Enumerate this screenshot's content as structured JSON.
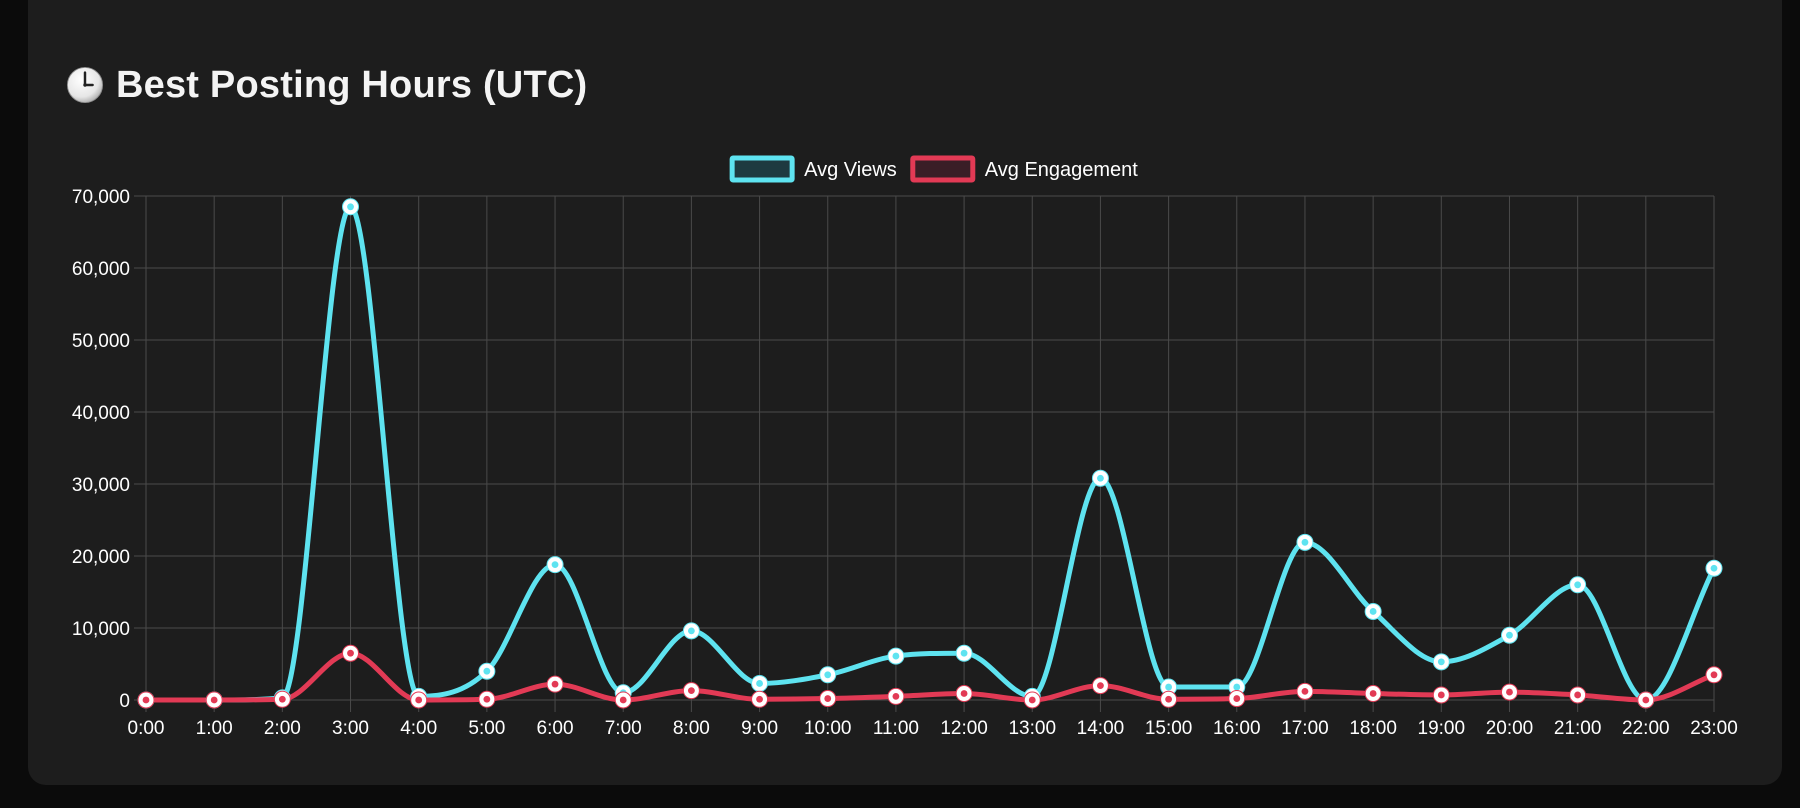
{
  "header": {
    "title": "Best Posting Hours (UTC)",
    "icon": "clock-icon"
  },
  "colors": {
    "background": "#0b0b0b",
    "panel": "#1d1d1d",
    "grid": "#4a4a4a",
    "views": "#5ee3f0",
    "engagement": "#e23a55",
    "text": "#ffffff"
  },
  "chart_data": {
    "type": "line",
    "title": "",
    "xlabel": "",
    "ylabel": "",
    "x": [
      "0:00",
      "1:00",
      "2:00",
      "3:00",
      "4:00",
      "5:00",
      "6:00",
      "7:00",
      "8:00",
      "9:00",
      "10:00",
      "11:00",
      "12:00",
      "13:00",
      "14:00",
      "15:00",
      "16:00",
      "17:00",
      "18:00",
      "19:00",
      "20:00",
      "21:00",
      "22:00",
      "23:00"
    ],
    "yticks": [
      "0",
      "10,000",
      "20,000",
      "30,000",
      "40,000",
      "50,000",
      "60,000",
      "70,000"
    ],
    "ylim": [
      0,
      70000
    ],
    "grid": true,
    "legend_position": "top-center",
    "smooth": true,
    "series": [
      {
        "name": "Avg Views",
        "color": "#5ee3f0",
        "values": [
          0,
          0,
          300,
          68500,
          500,
          4000,
          18800,
          1000,
          9600,
          2300,
          3500,
          6100,
          6500,
          500,
          30800,
          1800,
          1800,
          21900,
          12300,
          5300,
          9000,
          16000,
          0,
          18300
        ]
      },
      {
        "name": "Avg Engagement",
        "color": "#e23a55",
        "values": [
          0,
          0,
          100,
          6500,
          0,
          100,
          2200,
          0,
          1300,
          100,
          200,
          500,
          900,
          0,
          2000,
          100,
          200,
          1200,
          900,
          700,
          1100,
          700,
          0,
          3500
        ]
      }
    ]
  }
}
